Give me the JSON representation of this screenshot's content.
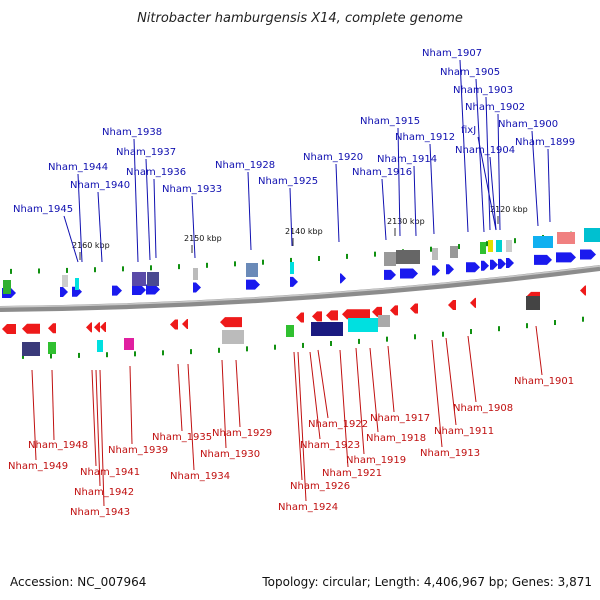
{
  "title": "Nitrobacter hamburgensis X14, complete genome",
  "footer": {
    "accession": "Accession: NC_007964",
    "topology": "Topology: circular; Length: 4,406,967 bp; Genes: 3,871"
  },
  "colors": {
    "forward_label": "#1010b0",
    "reverse_label": "#c01010",
    "forward_gene": "#1a1aee",
    "reverse_gene": "#ee1a1a",
    "backbone": "#8c8c8c",
    "marker": "#109010"
  },
  "ticks": [
    "2160 kbp",
    "2150 kbp",
    "2140 kbp",
    "2130 kbp",
    "2120 kbp"
  ],
  "forward_labels": [
    "Nham_1945",
    "Nham_1944",
    "Nham_1940",
    "Nham_1938",
    "Nham_1937",
    "Nham_1936",
    "Nham_1933",
    "Nham_1928",
    "Nham_1925",
    "Nham_1920",
    "Nham_1916",
    "Nham_1915",
    "Nham_1914",
    "Nham_1912",
    "Nham_1907",
    "Nham_1905",
    "Nham_1903",
    "Nham_1902",
    "fixJ",
    "Nham_1904",
    "Nham_1900",
    "Nham_1899"
  ],
  "reverse_labels": [
    "Nham_1948",
    "Nham_1949",
    "Nham_1941",
    "Nham_1942",
    "Nham_1943",
    "Nham_1939",
    "Nham_1935",
    "Nham_1934",
    "Nham_1930",
    "Nham_1929",
    "Nham_1926",
    "Nham_1924",
    "Nham_1923",
    "Nham_1922",
    "Nham_1921",
    "Nham_1919",
    "Nham_1918",
    "Nham_1917",
    "Nham_1913",
    "Nham_1911",
    "Nham_1908",
    "Nham_1901"
  ]
}
